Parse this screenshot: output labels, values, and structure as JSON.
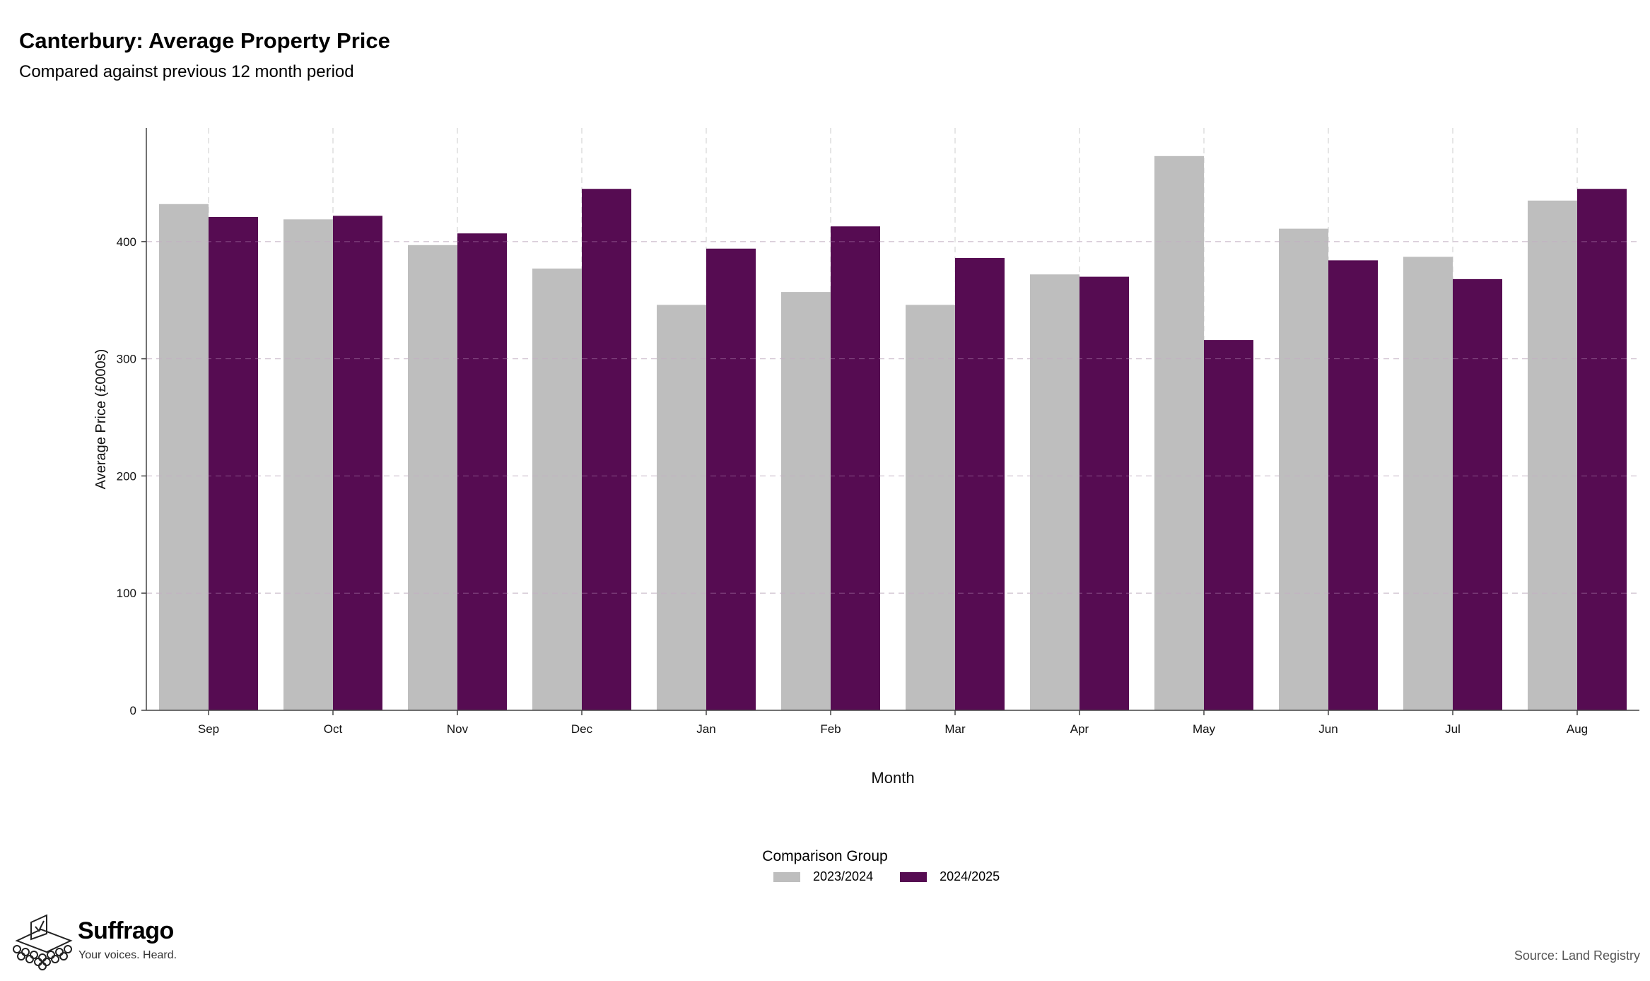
{
  "header": {
    "title": "Canterbury: Average Property Price",
    "subtitle": "Compared against previous 12 month period"
  },
  "chart_data": {
    "type": "bar",
    "title": "Canterbury: Average Property Price",
    "subtitle": "Compared against previous 12 month period",
    "xlabel": "Month",
    "ylabel": "Average Price (£000s)",
    "categories": [
      "Sep",
      "Oct",
      "Nov",
      "Dec",
      "Jan",
      "Feb",
      "Mar",
      "Apr",
      "May",
      "Jun",
      "Jul",
      "Aug"
    ],
    "series": [
      {
        "name": "2023/2024",
        "color": "#bebebe",
        "values": [
          432,
          419,
          397,
          377,
          346,
          357,
          346,
          372,
          473,
          411,
          387,
          435
        ]
      },
      {
        "name": "2024/2025",
        "color": "#560c52",
        "values": [
          421,
          422,
          407,
          445,
          394,
          413,
          386,
          370,
          316,
          384,
          368,
          445
        ]
      }
    ],
    "ylim": [
      0,
      497
    ],
    "yticks": [
      0,
      100,
      200,
      300,
      400
    ],
    "grid": true,
    "legend_title": "Comparison Group",
    "legend_position": "bottom"
  },
  "brand": {
    "name": "Suffrago",
    "tagline": "Your voices. Heard.",
    "logo_icon": "ballot-box-icon"
  },
  "source": "Source: Land Registry"
}
